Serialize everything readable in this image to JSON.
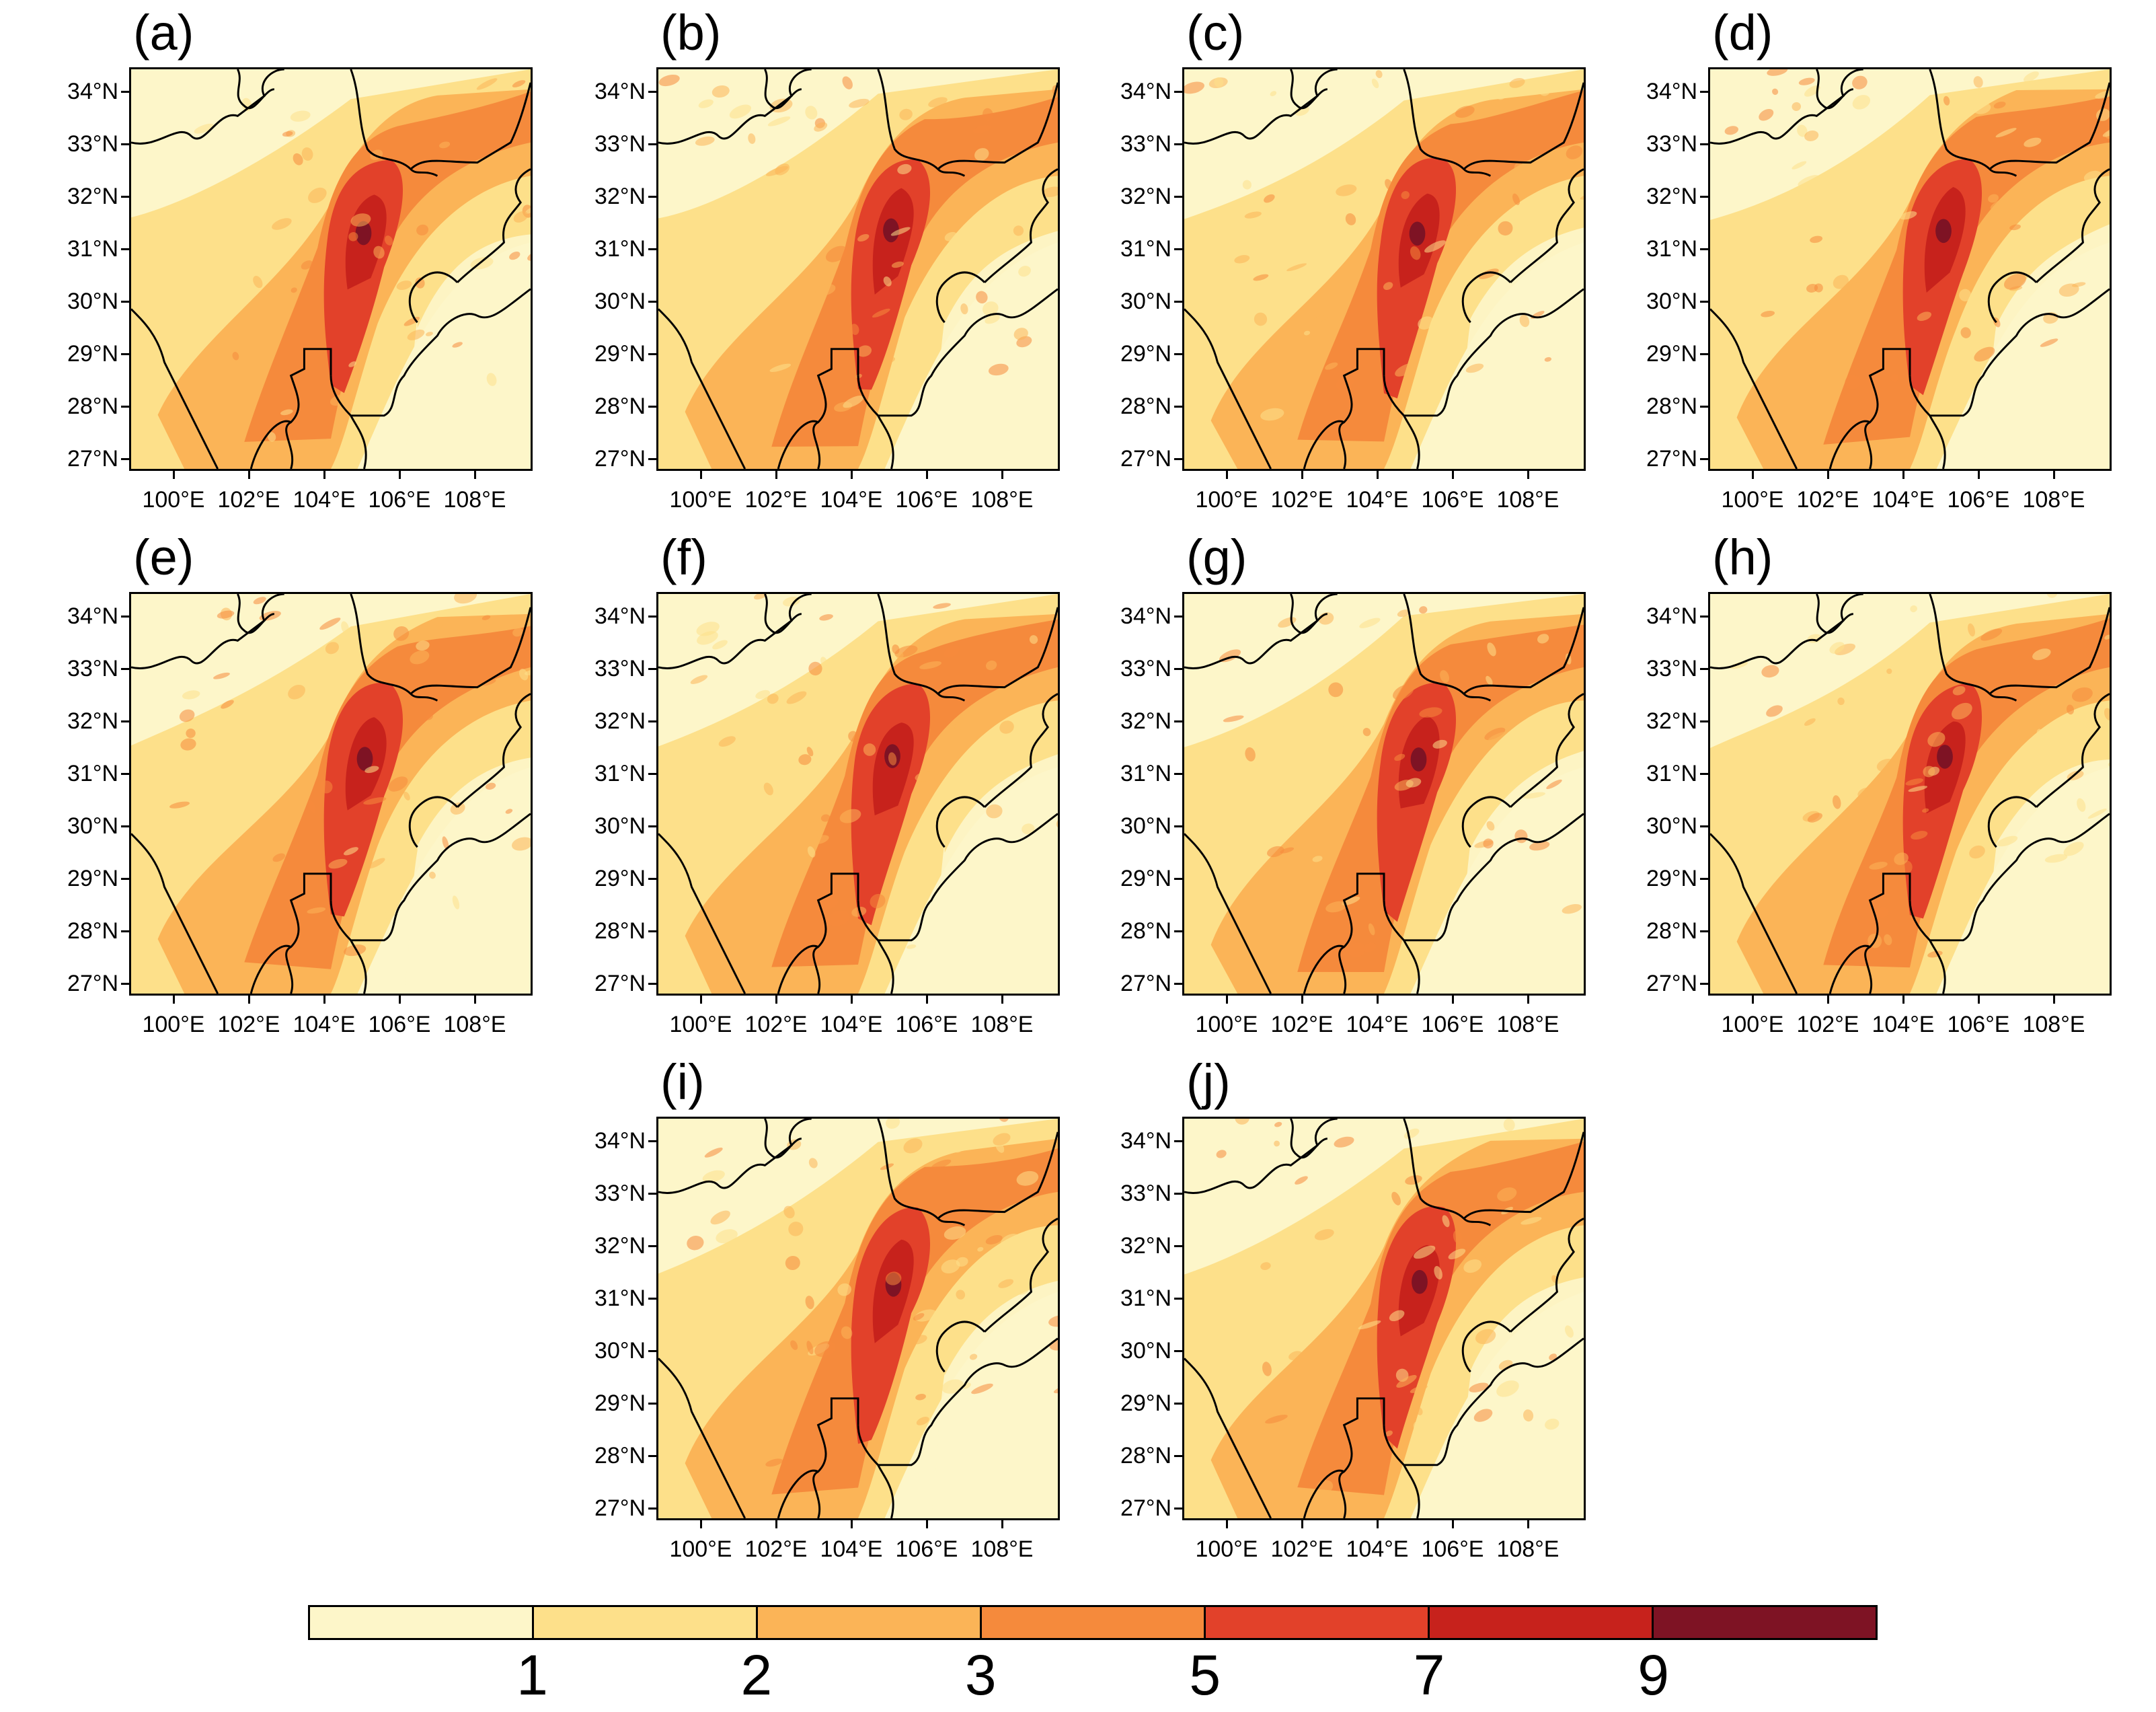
{
  "figure": {
    "panels": [
      {
        "id": "a",
        "label": "(a)"
      },
      {
        "id": "b",
        "label": "(b)"
      },
      {
        "id": "c",
        "label": "(c)"
      },
      {
        "id": "d",
        "label": "(d)"
      },
      {
        "id": "e",
        "label": "(e)"
      },
      {
        "id": "f",
        "label": "(f)"
      },
      {
        "id": "g",
        "label": "(g)"
      },
      {
        "id": "h",
        "label": "(h)"
      },
      {
        "id": "i",
        "label": "(i)"
      },
      {
        "id": "j",
        "label": "(j)"
      }
    ],
    "lat_ticks": [
      "34°N",
      "33°N",
      "32°N",
      "31°N",
      "30°N",
      "29°N",
      "28°N",
      "27°N"
    ],
    "lon_ticks": [
      "100°E",
      "102°E",
      "104°E",
      "106°E",
      "108°E"
    ],
    "colorbar": {
      "labels": [
        "1",
        "2",
        "3",
        "5",
        "7",
        "9"
      ],
      "colors": [
        "#fdf6c9",
        "#fde08a",
        "#fbb457",
        "#f58a3c",
        "#e2412a",
        "#c7221c",
        "#7e1324"
      ]
    }
  }
}
